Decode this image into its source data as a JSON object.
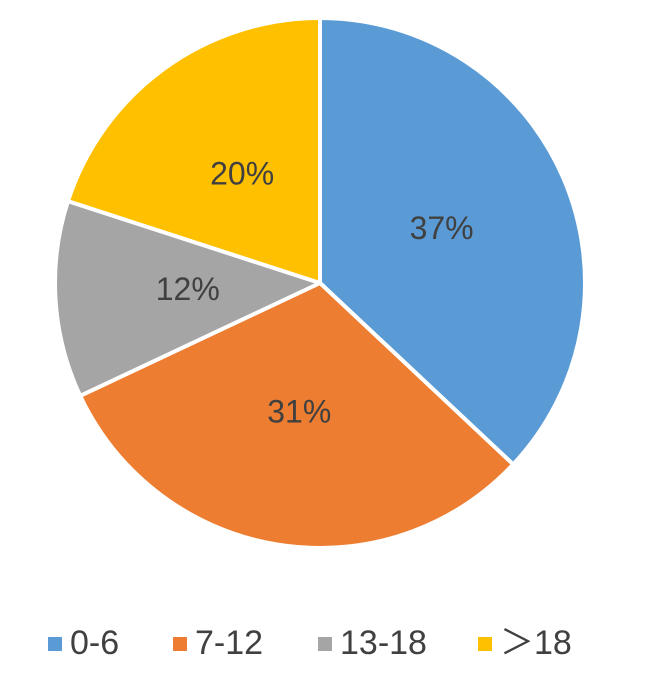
{
  "chart_data": {
    "type": "pie",
    "categories": [
      "0-6",
      "7-12",
      "13-18",
      "＞18"
    ],
    "values": [
      37,
      31,
      12,
      20
    ],
    "value_labels": [
      "37%",
      "31%",
      "12%",
      "20%"
    ],
    "colors": [
      "#5b9bd5",
      "#ed7d31",
      "#a5a5a5",
      "#ffc000"
    ],
    "legend": "bottom"
  }
}
